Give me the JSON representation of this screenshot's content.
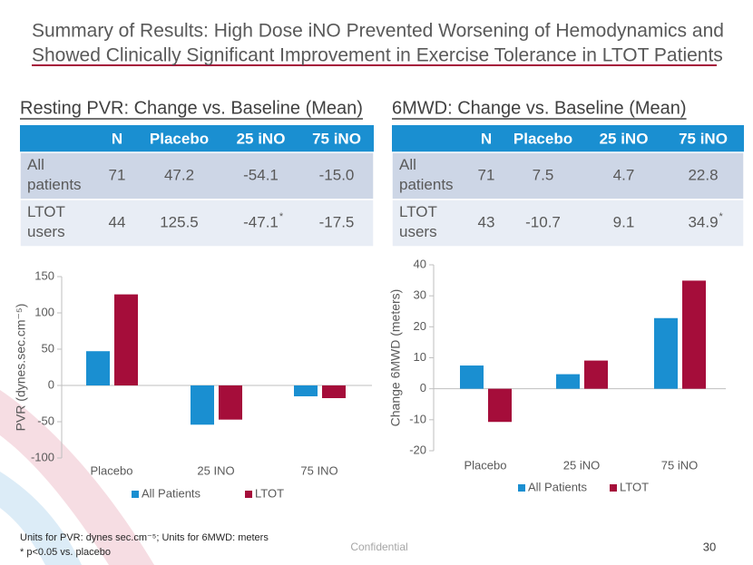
{
  "header": {
    "title_lines": [
      "Summary of Results: High Dose iNO Prevented Worsening of Hemodynamics and",
      "Showed Clinically Significant Improvement in Exercise Tolerance in LTOT Patients"
    ]
  },
  "tables": [
    {
      "title": "Resting PVR: Change vs. Baseline (Mean)",
      "header": [
        "N",
        "Placebo",
        "25 iNO",
        "75 iNO"
      ],
      "rows": [
        [
          "All patients",
          "71",
          "47.2",
          "-54.1",
          "-15.0"
        ],
        [
          "LTOT users",
          "44",
          "125.5",
          {
            "value": "-47.1",
            "sup": "*"
          },
          "-17.5"
        ]
      ]
    },
    {
      "title": "6MWD: Change vs. Baseline (Mean)",
      "header": [
        "N",
        "Placebo",
        "25 iNO",
        "75 iNO"
      ],
      "rows": [
        [
          "All patients",
          "71",
          "7.5",
          "4.7",
          "22.8"
        ],
        [
          "LTOT users",
          "43",
          "-10.7",
          "9.1",
          {
            "value": "34.9",
            "sup": "*"
          }
        ]
      ]
    }
  ],
  "chart_data": [
    {
      "type": "bar",
      "ylabel": "PVR (dynes.sec.cm⁻⁵)",
      "categories": [
        "Placebo",
        "25 INO",
        "75 INO"
      ],
      "series": [
        {
          "name": "All Patients",
          "color": "#1a8fd1",
          "values": [
            47.2,
            -54.1,
            -15.0
          ]
        },
        {
          "name": "LTOT",
          "color": "#a50d3a",
          "values": [
            125.5,
            -47.1,
            -17.5
          ]
        }
      ],
      "ylim": [
        -100,
        150
      ],
      "yticks": [
        -100,
        -50,
        0,
        50,
        100,
        150
      ],
      "legend": "bottom"
    },
    {
      "type": "bar",
      "ylabel": "Change 6MWD (meters)",
      "categories": [
        "Placebo",
        "25 iNO",
        "75 iNO"
      ],
      "series": [
        {
          "name": "All Patients",
          "color": "#1a8fd1",
          "values": [
            7.5,
            4.7,
            22.8
          ]
        },
        {
          "name": "LTOT",
          "color": "#a50d3a",
          "values": [
            -10.7,
            9.1,
            34.9
          ]
        }
      ],
      "ylim": [
        -20,
        40
      ],
      "yticks": [
        -20,
        -10,
        0,
        10,
        20,
        30,
        40
      ],
      "legend": "bottom"
    }
  ],
  "footer": {
    "notes": [
      "Units for PVR: dynes sec.cm⁻⁵; Units for 6MWD: meters",
      "* p<0.05 vs. placebo"
    ],
    "center": "Confidential",
    "page": "30"
  }
}
